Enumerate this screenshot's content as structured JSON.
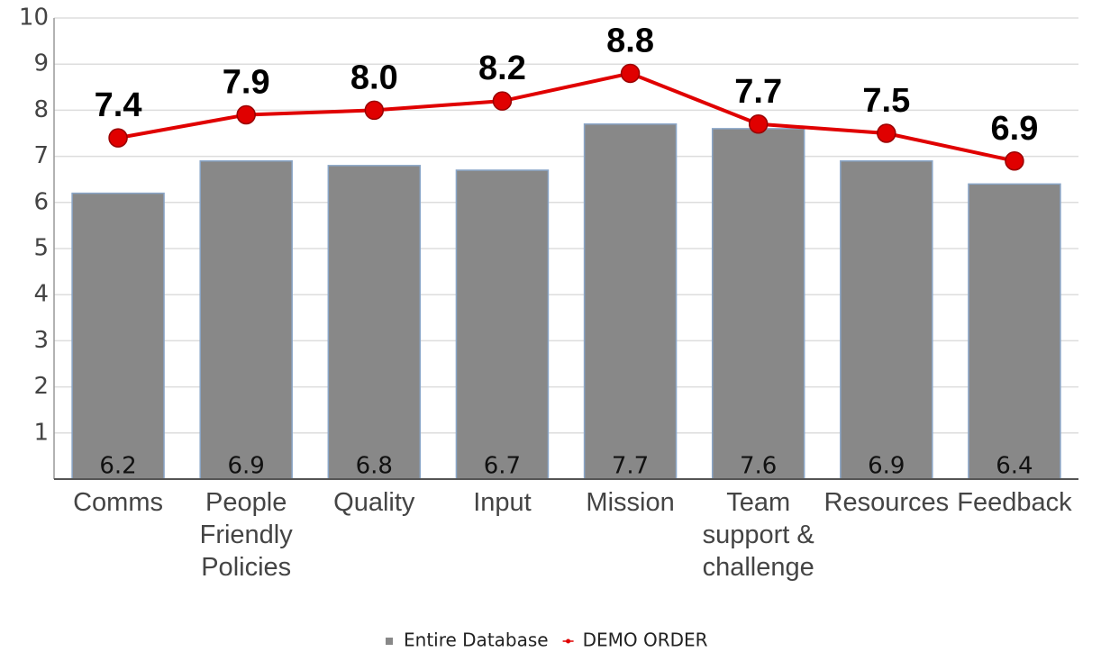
{
  "chart_data": {
    "type": "bar",
    "categories": [
      "Comms",
      "People Friendly Policies",
      "Quality",
      "Input",
      "Mission",
      "Team support & challenge",
      "Resources",
      "Feedback"
    ],
    "series": [
      {
        "name": "Entire Database",
        "color": "#888888",
        "type": "bar",
        "values": [
          6.2,
          6.9,
          6.8,
          6.7,
          7.7,
          7.6,
          6.9,
          6.4
        ]
      },
      {
        "name": "DEMO ORDER",
        "color": "#e00000",
        "type": "line",
        "values": [
          7.4,
          7.9,
          8.0,
          8.2,
          8.8,
          7.7,
          7.5,
          6.9
        ],
        "value_labels": [
          "7.4",
          "7.9",
          "8.0",
          "8.2",
          "8.8",
          "7.7",
          "7.5",
          "6.9"
        ]
      }
    ],
    "ylim": [
      0,
      10
    ],
    "yticks": [
      1,
      2,
      3,
      4,
      5,
      6,
      7,
      8,
      9,
      10
    ],
    "grid": true,
    "legend": "bottom"
  }
}
